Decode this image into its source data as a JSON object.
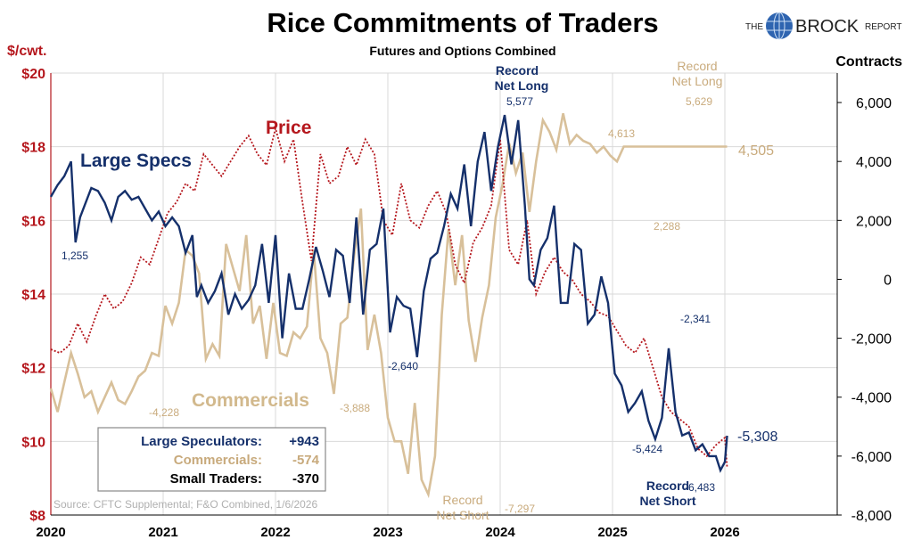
{
  "header": {
    "title": "Rice Commitments of Traders",
    "subtitle": "Futures and Options Combined",
    "logo_the": "THE",
    "logo_brock": "BROCK",
    "logo_report": "REPORT"
  },
  "source": "Source: CFTC Supplemental; F&O Combined, 1/6/2026",
  "legend_box": [
    {
      "label": "Large Speculators:",
      "value": "+943",
      "color": "#1a2f66"
    },
    {
      "label": "Commercials:",
      "value": "-574",
      "color": "#c8aa7c"
    },
    {
      "label": "Small Traders:",
      "value": "-370",
      "color": "#000000"
    }
  ],
  "colors": {
    "specs": "#15306b",
    "commercials": "#d8c09a",
    "price": "#b5171d",
    "commercials_text": "#c9ab7d",
    "grid": "#d9d9d9"
  },
  "chart_data": {
    "type": "line",
    "x_ticks": [
      "2020",
      "2021",
      "2022",
      "2023",
      "2024",
      "2025",
      "2026"
    ],
    "x_range": [
      2020.0,
      2027.0
    ],
    "left_axis": {
      "label": "$/cwt.",
      "range": [
        8,
        20
      ],
      "ticks": [
        "$8",
        "$10",
        "$12",
        "$14",
        "$16",
        "$18",
        "$20"
      ]
    },
    "right_axis": {
      "label": "Contracts",
      "range": [
        -8000,
        7000
      ],
      "ticks": [
        "-8,000",
        "-6,000",
        "-4,000",
        "-2,000",
        "0",
        "2,000",
        "4,000",
        "6,000"
      ]
    },
    "series": [
      {
        "name": "Large Specs",
        "axis": "right",
        "x": [
          2020.0,
          2020.06,
          2020.12,
          2020.18,
          2020.22,
          2020.26,
          2020.3,
          2020.36,
          2020.42,
          2020.48,
          2020.54,
          2020.6,
          2020.66,
          2020.72,
          2020.78,
          2020.84,
          2020.9,
          2020.96,
          2021.02,
          2021.08,
          2021.14,
          2021.2,
          2021.26,
          2021.3,
          2021.34,
          2021.4,
          2021.46,
          2021.52,
          2021.58,
          2021.64,
          2021.7,
          2021.76,
          2021.82,
          2021.88,
          2021.94,
          2022.0,
          2022.06,
          2022.12,
          2022.18,
          2022.24,
          2022.3,
          2022.36,
          2022.42,
          2022.48,
          2022.54,
          2022.6,
          2022.66,
          2022.72,
          2022.78,
          2022.84,
          2022.9,
          2022.96,
          2023.02,
          2023.08,
          2023.14,
          2023.2,
          2023.26,
          2023.32,
          2023.38,
          2023.44,
          2023.5,
          2023.56,
          2023.62,
          2023.68,
          2023.74,
          2023.8,
          2023.86,
          2023.92,
          2023.98,
          2024.04,
          2024.1,
          2024.16,
          2024.22,
          2024.26,
          2024.3,
          2024.36,
          2024.42,
          2024.48,
          2024.54,
          2024.6,
          2024.66,
          2024.72,
          2024.78,
          2024.84,
          2024.9,
          2024.96,
          2025.02,
          2025.08,
          2025.14,
          2025.2,
          2025.26,
          2025.32,
          2025.38,
          2025.44,
          2025.5,
          2025.56,
          2025.62,
          2025.68,
          2025.74,
          2025.8,
          2025.86,
          2025.92,
          2025.96,
          2026.0,
          2026.02
        ],
        "y": [
          2800,
          3200,
          3500,
          4000,
          1255,
          2100,
          2500,
          3100,
          3000,
          2600,
          2000,
          2800,
          3000,
          2700,
          2800,
          2400,
          2000,
          2300,
          1800,
          2100,
          1800,
          900,
          1500,
          -600,
          -200,
          -800,
          -400,
          200,
          -1200,
          -500,
          -1000,
          -700,
          -200,
          1200,
          -800,
          1500,
          -2000,
          200,
          -1000,
          -1000,
          0,
          1100,
          300,
          -600,
          1000,
          800,
          -800,
          2100,
          -1200,
          1000,
          1200,
          2400,
          -1800,
          -600,
          -900,
          -1000,
          -2640,
          -400,
          700,
          900,
          1800,
          2900,
          2400,
          3900,
          1800,
          4000,
          5000,
          3000,
          4500,
          5577,
          3900,
          5400,
          2500,
          0,
          -200,
          1000,
          1400,
          2500,
          -800,
          -800,
          1200,
          1000,
          -1500,
          -1200,
          100,
          -800,
          -3200,
          -3600,
          -4500,
          -4200,
          -3800,
          -4800,
          -5424,
          -4700,
          -2341,
          -4500,
          -5300,
          -5200,
          -5800,
          -5600,
          -6000,
          -6000,
          -6483,
          -6200,
          -5308
        ]
      },
      {
        "name": "Commercials",
        "axis": "right",
        "x": [
          2020.0,
          2020.06,
          2020.12,
          2020.18,
          2020.24,
          2020.3,
          2020.36,
          2020.42,
          2020.48,
          2020.54,
          2020.6,
          2020.66,
          2020.72,
          2020.78,
          2020.84,
          2020.9,
          2020.96,
          2021.02,
          2021.08,
          2021.14,
          2021.2,
          2021.26,
          2021.32,
          2021.38,
          2021.44,
          2021.5,
          2021.56,
          2021.62,
          2021.68,
          2021.74,
          2021.8,
          2021.86,
          2021.92,
          2021.98,
          2022.04,
          2022.1,
          2022.16,
          2022.22,
          2022.28,
          2022.34,
          2022.4,
          2022.46,
          2022.52,
          2022.58,
          2022.64,
          2022.7,
          2022.76,
          2022.82,
          2022.88,
          2022.94,
          2023.0,
          2023.06,
          2023.12,
          2023.18,
          2023.24,
          2023.3,
          2023.36,
          2023.42,
          2023.48,
          2023.54,
          2023.6,
          2023.66,
          2023.72,
          2023.78,
          2023.84,
          2023.9,
          2023.96,
          2024.02,
          2024.08,
          2024.14,
          2024.2,
          2024.26,
          2024.32,
          2024.38,
          2024.44,
          2024.5,
          2024.56,
          2024.62,
          2024.68,
          2024.74,
          2024.8,
          2024.86,
          2024.92,
          2024.98,
          2025.04,
          2025.1,
          2025.16,
          2025.22,
          2025.28,
          2025.34,
          2025.4,
          2025.46,
          2025.52,
          2025.58,
          2025.64,
          2025.7,
          2025.76,
          2025.82,
          2025.88,
          2025.94,
          2026.0,
          2026.02
        ],
        "y": [
          -3700,
          -4500,
          -3500,
          -2500,
          -3200,
          -4000,
          -3800,
          -4500,
          -4000,
          -3500,
          -4100,
          -4228,
          -3800,
          -3300,
          -3100,
          -2500,
          -2600,
          -900,
          -1500,
          -800,
          1000,
          800,
          200,
          -2700,
          -2200,
          -2600,
          1200,
          400,
          -400,
          1500,
          -1500,
          -900,
          -2700,
          -800,
          -2500,
          -2600,
          -1800,
          -2000,
          -1600,
          1000,
          -2000,
          -2500,
          -3888,
          -1500,
          -1300,
          800,
          2400,
          -2400,
          -1200,
          -2500,
          -4700,
          -5500,
          -5500,
          -6600,
          -4200,
          -6800,
          -7297,
          -6000,
          -1200,
          1700,
          -200,
          1500,
          -1400,
          -2800,
          -1300,
          -200,
          2100,
          3200,
          4613,
          3600,
          4300,
          2288,
          4000,
          5400,
          5000,
          4400,
          5629,
          4600,
          4900,
          4700,
          4600,
          4300,
          4505,
          4200,
          4000,
          4505,
          4505,
          4505,
          4505,
          4505,
          4505,
          4505,
          4505,
          4505,
          4505,
          4505,
          4505,
          4505,
          4505,
          4505,
          4505,
          4505
        ]
      },
      {
        "name": "Price",
        "axis": "left",
        "x": [
          2020.0,
          2020.08,
          2020.16,
          2020.24,
          2020.32,
          2020.4,
          2020.48,
          2020.56,
          2020.64,
          2020.72,
          2020.8,
          2020.88,
          2020.96,
          2021.04,
          2021.12,
          2021.2,
          2021.28,
          2021.36,
          2021.44,
          2021.52,
          2021.6,
          2021.68,
          2021.76,
          2021.84,
          2021.92,
          2022.0,
          2022.08,
          2022.16,
          2022.24,
          2022.32,
          2022.4,
          2022.48,
          2022.56,
          2022.64,
          2022.72,
          2022.8,
          2022.88,
          2022.96,
          2023.04,
          2023.12,
          2023.2,
          2023.28,
          2023.36,
          2023.44,
          2023.52,
          2023.6,
          2023.68,
          2023.76,
          2023.84,
          2023.92,
          2024.0,
          2024.08,
          2024.16,
          2024.24,
          2024.32,
          2024.4,
          2024.48,
          2024.56,
          2024.64,
          2024.72,
          2024.8,
          2024.88,
          2024.96,
          2025.04,
          2025.12,
          2025.2,
          2025.28,
          2025.36,
          2025.44,
          2025.52,
          2025.6,
          2025.68,
          2025.76,
          2025.84,
          2025.92,
          2026.0,
          2026.02
        ],
        "y": [
          12.5,
          12.4,
          12.6,
          13.2,
          12.7,
          13.4,
          14.0,
          13.6,
          13.8,
          14.3,
          15.0,
          14.8,
          15.5,
          16.2,
          16.5,
          17.0,
          16.8,
          17.8,
          17.5,
          17.2,
          17.6,
          18.0,
          18.3,
          17.8,
          17.5,
          18.5,
          17.6,
          18.2,
          16.5,
          14.9,
          17.8,
          17.0,
          17.2,
          18.0,
          17.5,
          18.2,
          17.8,
          16.0,
          15.6,
          17.0,
          16.0,
          15.8,
          16.4,
          16.8,
          16.2,
          14.8,
          14.3,
          15.4,
          15.8,
          16.4,
          18.2,
          15.2,
          14.8,
          16.0,
          14.0,
          14.6,
          15.0,
          14.6,
          14.4,
          14.0,
          13.8,
          13.5,
          13.4,
          13.0,
          12.6,
          12.4,
          12.8,
          12.0,
          11.2,
          10.8,
          10.6,
          10.4,
          9.8,
          9.6,
          9.9,
          10.1,
          9.3
        ]
      }
    ],
    "labels": {
      "specs_label": "Large Specs",
      "commercials_label": "Commercials",
      "price_label": "Price",
      "record_net_long_specs": [
        "Record",
        "Net Long"
      ],
      "record_net_long_comm": [
        "Record",
        "Net Long"
      ],
      "record_net_short_comm": [
        "Record",
        "Net Short"
      ],
      "record_net_short_specs": [
        "Record",
        "Net Short"
      ]
    },
    "annotations": [
      {
        "text": "1,255",
        "series": "specs"
      },
      {
        "text": "-2,640",
        "series": "specs"
      },
      {
        "text": "5,577",
        "series": "specs"
      },
      {
        "text": "-5,424",
        "series": "specs"
      },
      {
        "text": "-2,341",
        "series": "specs"
      },
      {
        "text": "-6,483",
        "series": "specs"
      },
      {
        "text": "-5,308",
        "series": "specs"
      },
      {
        "text": "-4,228",
        "series": "commercials"
      },
      {
        "text": "-3,888",
        "series": "commercials"
      },
      {
        "text": "-7,297",
        "series": "commercials"
      },
      {
        "text": "4,613",
        "series": "commercials"
      },
      {
        "text": "2,288",
        "series": "commercials"
      },
      {
        "text": "5,629",
        "series": "commercials"
      },
      {
        "text": "4,505",
        "series": "commercials"
      }
    ]
  }
}
